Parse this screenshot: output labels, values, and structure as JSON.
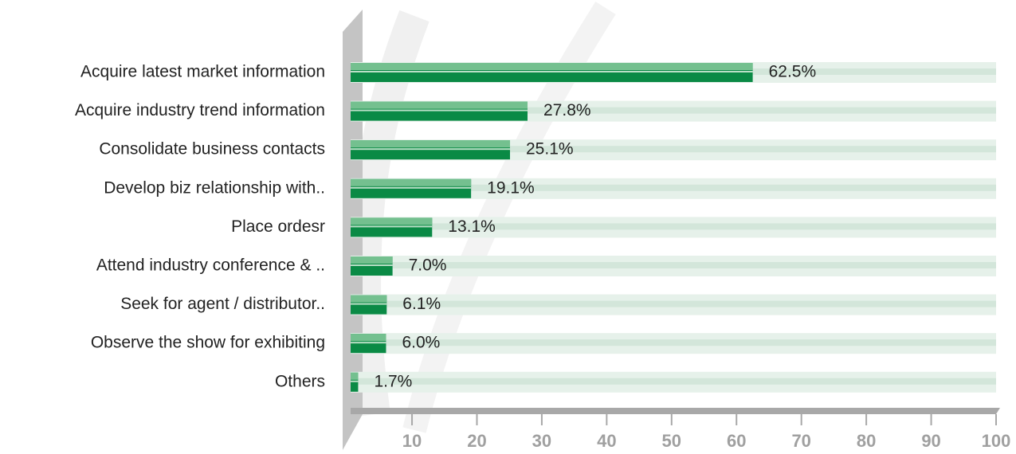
{
  "chart_data": {
    "type": "hbar",
    "categories": [
      "Acquire latest market information",
      "Acquire industry trend information",
      "Consolidate business contacts",
      "Develop biz relationship with..",
      "Place ordesr",
      "Attend industry conference & ..",
      "Seek for agent / distributor..",
      "Observe the show for exhibiting",
      "Others"
    ],
    "values": [
      62.5,
      27.8,
      25.1,
      19.1,
      13.1,
      7.0,
      6.1,
      6.0,
      1.7
    ],
    "value_labels": [
      "62.5%",
      "27.8%",
      "25.1%",
      "19.1%",
      "13.1%",
      "7.0%",
      "6.1%",
      "6.0%",
      "1.7%"
    ],
    "color": "#0a8a45",
    "xlim": [
      0,
      100
    ],
    "xticks": [
      10,
      20,
      30,
      40,
      50,
      60,
      70,
      80,
      90,
      100
    ]
  }
}
